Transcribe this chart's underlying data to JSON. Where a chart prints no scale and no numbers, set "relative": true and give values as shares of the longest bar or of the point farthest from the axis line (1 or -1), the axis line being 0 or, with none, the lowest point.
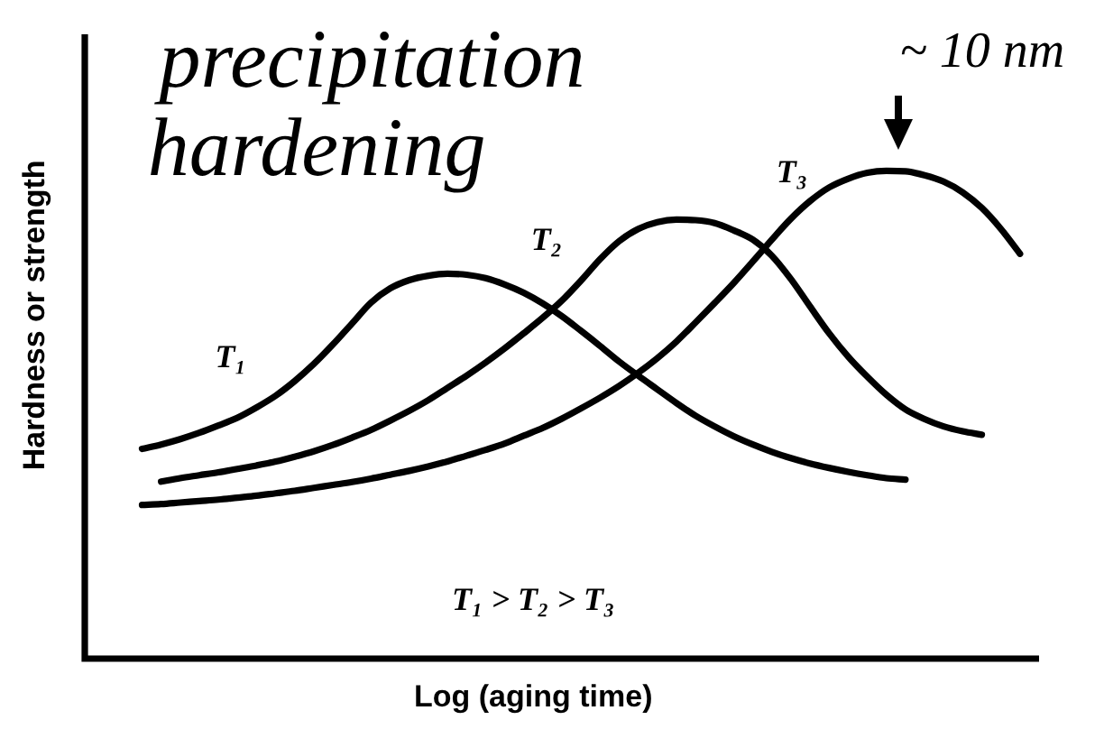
{
  "chart_data": {
    "type": "line",
    "title": "precipitation hardening",
    "xlabel": "Log (aging time)",
    "ylabel": "Hardness or strength",
    "relative": true,
    "categories": [
      null,
      null,
      null,
      null,
      null,
      null,
      null,
      null,
      null,
      null,
      null,
      null,
      null,
      null,
      null,
      null,
      null,
      null,
      null,
      null,
      null,
      null,
      null,
      null,
      null,
      null,
      null,
      null,
      null,
      null,
      null,
      null,
      null,
      null,
      null,
      null,
      null,
      null,
      null,
      null,
      null,
      null,
      null,
      null,
      null,
      null,
      null,
      null,
      null,
      null,
      null
    ],
    "series": [
      {
        "name": "T₁",
        "color": "#000000",
        "values": [
          null,
          null,
          null,
          0.43,
          0.439,
          0.45,
          0.463,
          0.478,
          0.494,
          0.515,
          0.539,
          0.569,
          0.604,
          0.644,
          0.687,
          0.73,
          0.759,
          0.776,
          0.785,
          0.789,
          0.787,
          0.78,
          0.767,
          0.75,
          0.728,
          0.702,
          0.672,
          0.641,
          0.609,
          0.58,
          0.552,
          0.524,
          0.498,
          0.476,
          0.456,
          0.439,
          0.424,
          0.411,
          0.4,
          0.391,
          0.383,
          0.376,
          0.37,
          0.367,
          null,
          null,
          null,
          null,
          null,
          null,
          null
        ]
      },
      {
        "name": "T₂",
        "color": "#000000",
        "values": [
          null,
          null,
          null,
          null,
          0.363,
          0.37,
          0.376,
          0.382,
          0.389,
          0.396,
          0.404,
          0.414,
          0.425,
          0.438,
          0.453,
          0.469,
          0.488,
          0.508,
          0.53,
          0.555,
          0.58,
          0.607,
          0.636,
          0.667,
          0.699,
          0.734,
          0.775,
          0.819,
          0.856,
          0.881,
          0.895,
          0.9,
          0.899,
          0.893,
          0.878,
          0.859,
          0.826,
          0.778,
          0.722,
          0.667,
          0.619,
          0.578,
          0.541,
          0.511,
          0.491,
          0.476,
          0.466,
          0.459,
          null,
          null,
          null
        ]
      },
      {
        "name": "T₃",
        "color": "#000000",
        "values": [
          null,
          null,
          null,
          0.315,
          0.317,
          0.32,
          0.323,
          0.326,
          0.33,
          0.334,
          0.339,
          0.344,
          0.35,
          0.356,
          0.362,
          0.369,
          0.377,
          0.385,
          0.394,
          0.404,
          0.416,
          0.428,
          0.441,
          0.457,
          0.473,
          0.492,
          0.513,
          0.535,
          0.559,
          0.586,
          0.616,
          0.65,
          0.689,
          0.729,
          0.77,
          0.814,
          0.859,
          0.902,
          0.938,
          0.966,
          0.984,
          0.996,
          1.0,
          0.999,
          0.991,
          0.978,
          0.956,
          0.924,
          0.881,
          0.83,
          null
        ]
      }
    ],
    "annotations": [
      "~ 10 nm",
      "T₁ > T₂ > T₃"
    ]
  }
}
